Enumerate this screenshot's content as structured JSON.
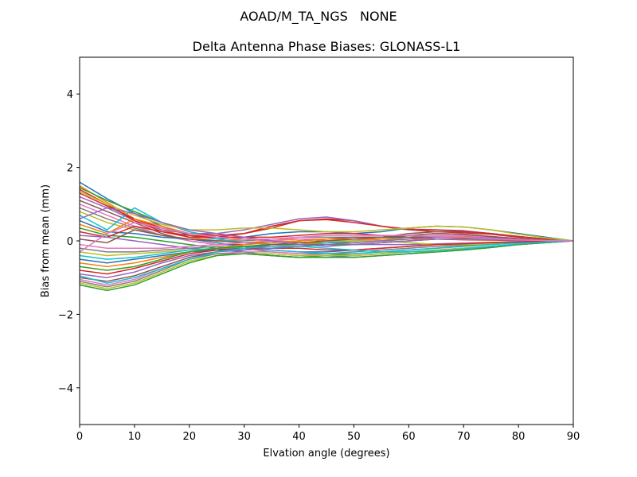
{
  "suptitle": "AOAD/M_TA_NGS   NONE",
  "chart_data": {
    "type": "line",
    "title": "Delta Antenna Phase Biases: GLONASS-L1",
    "xlabel": "Elvation angle (degrees)",
    "ylabel": "Bias from mean (mm)",
    "xlim": [
      0,
      90
    ],
    "ylim": [
      -5,
      5
    ],
    "xticks": [
      0,
      10,
      20,
      30,
      40,
      50,
      60,
      70,
      80,
      90
    ],
    "xtick_labels": [
      "0",
      "10",
      "20",
      "30",
      "40",
      "50",
      "60",
      "70",
      "80",
      "90"
    ],
    "yticks": [
      -4,
      -2,
      0,
      2,
      4
    ],
    "ytick_labels": [
      "−4",
      "−2",
      "0",
      "2",
      "4"
    ],
    "grid": false,
    "legend": "none",
    "x": [
      0,
      5,
      10,
      15,
      20,
      25,
      30,
      35,
      40,
      45,
      50,
      55,
      60,
      65,
      70,
      75,
      80,
      85,
      90
    ],
    "series": [
      {
        "color": "#1f77b4",
        "values": [
          1.6,
          1.15,
          0.75,
          0.4,
          0.15,
          0.05,
          0.1,
          0.2,
          0.25,
          0.25,
          0.2,
          0.25,
          0.35,
          0.4,
          0.38,
          0.3,
          0.2,
          0.1,
          0.0
        ]
      },
      {
        "color": "#ff7f0e",
        "values": [
          1.5,
          1.05,
          0.6,
          0.3,
          0.1,
          0.0,
          0.05,
          0.05,
          0.05,
          0.0,
          0.0,
          0.05,
          0.1,
          0.15,
          0.12,
          0.1,
          0.05,
          0.02,
          0.0
        ]
      },
      {
        "color": "#2ca02c",
        "values": [
          1.45,
          1.1,
          0.8,
          0.5,
          0.25,
          0.1,
          0.05,
          0.0,
          -0.05,
          -0.05,
          -0.05,
          0.0,
          0.05,
          0.1,
          0.1,
          0.08,
          0.05,
          0.02,
          0.0
        ]
      },
      {
        "color": "#d62728",
        "values": [
          1.3,
          0.95,
          0.6,
          0.35,
          0.2,
          0.15,
          0.2,
          0.35,
          0.55,
          0.6,
          0.55,
          0.4,
          0.3,
          0.25,
          0.22,
          0.18,
          0.1,
          0.05,
          0.0
        ]
      },
      {
        "color": "#9467bd",
        "values": [
          1.2,
          0.9,
          0.55,
          0.3,
          0.2,
          0.2,
          0.3,
          0.45,
          0.6,
          0.65,
          0.55,
          0.4,
          0.3,
          0.3,
          0.28,
          0.2,
          0.12,
          0.05,
          0.0
        ]
      },
      {
        "color": "#8c564b",
        "values": [
          1.1,
          0.8,
          0.5,
          0.2,
          0.0,
          -0.1,
          -0.1,
          -0.05,
          0.0,
          0.05,
          0.05,
          0.1,
          0.2,
          0.25,
          0.25,
          0.2,
          0.12,
          0.05,
          0.0
        ]
      },
      {
        "color": "#e377c2",
        "values": [
          1.0,
          0.7,
          0.4,
          0.15,
          0.0,
          -0.1,
          -0.15,
          -0.15,
          -0.1,
          -0.05,
          0.0,
          0.05,
          0.1,
          0.15,
          0.15,
          0.1,
          0.05,
          0.02,
          0.0
        ]
      },
      {
        "color": "#7f7f7f",
        "values": [
          0.9,
          0.6,
          0.35,
          0.15,
          0.05,
          0.0,
          0.0,
          0.05,
          0.1,
          0.1,
          0.1,
          0.1,
          0.15,
          0.2,
          0.18,
          0.12,
          0.06,
          0.02,
          0.0
        ]
      },
      {
        "color": "#bcbd22",
        "values": [
          0.8,
          0.5,
          0.3,
          0.15,
          0.05,
          0.0,
          -0.05,
          -0.1,
          -0.1,
          -0.1,
          -0.1,
          -0.05,
          0.0,
          0.05,
          0.05,
          0.05,
          0.03,
          0.01,
          0.0
        ]
      },
      {
        "color": "#17becf",
        "values": [
          0.7,
          0.3,
          0.9,
          0.5,
          0.25,
          0.05,
          -0.05,
          -0.1,
          -0.1,
          -0.05,
          0.0,
          0.05,
          0.1,
          0.1,
          0.08,
          0.05,
          0.02,
          0.01,
          0.0
        ]
      },
      {
        "color": "#1f77b4",
        "values": [
          0.55,
          0.25,
          0.2,
          0.1,
          0.05,
          -0.05,
          -0.15,
          -0.25,
          -0.3,
          -0.3,
          -0.25,
          -0.2,
          -0.15,
          -0.1,
          -0.08,
          -0.05,
          -0.03,
          -0.01,
          0.0
        ]
      },
      {
        "color": "#ff7f0e",
        "values": [
          0.45,
          0.2,
          0.6,
          0.4,
          0.2,
          0.1,
          0.05,
          0.0,
          -0.05,
          -0.1,
          -0.1,
          -0.05,
          0.0,
          0.05,
          0.05,
          0.03,
          0.02,
          0.01,
          0.0
        ]
      },
      {
        "color": "#2ca02c",
        "values": [
          0.35,
          0.15,
          0.1,
          0.0,
          -0.1,
          -0.2,
          -0.3,
          -0.4,
          -0.45,
          -0.4,
          -0.35,
          -0.3,
          -0.25,
          -0.2,
          -0.15,
          -0.1,
          -0.05,
          -0.02,
          0.0
        ]
      },
      {
        "color": "#d62728",
        "values": [
          0.25,
          0.1,
          0.4,
          0.25,
          0.15,
          0.1,
          0.1,
          0.1,
          0.15,
          0.2,
          0.2,
          0.15,
          0.1,
          0.05,
          0.03,
          0.02,
          0.01,
          0.0,
          0.0
        ]
      },
      {
        "color": "#9467bd",
        "values": [
          0.15,
          0.1,
          0.0,
          -0.1,
          -0.2,
          -0.25,
          -0.25,
          -0.2,
          -0.15,
          -0.1,
          -0.1,
          -0.1,
          -0.1,
          -0.08,
          -0.06,
          -0.04,
          -0.02,
          -0.01,
          0.0
        ]
      },
      {
        "color": "#8c564b",
        "values": [
          0.05,
          -0.05,
          0.3,
          0.15,
          0.05,
          0.0,
          -0.05,
          -0.05,
          0.0,
          0.05,
          0.1,
          0.1,
          0.1,
          0.1,
          0.08,
          0.05,
          0.03,
          0.01,
          0.0
        ]
      },
      {
        "color": "#e377c2",
        "values": [
          -0.1,
          -0.2,
          -0.2,
          -0.2,
          -0.15,
          -0.1,
          -0.05,
          0.0,
          0.05,
          0.05,
          0.05,
          0.0,
          -0.05,
          -0.1,
          -0.1,
          -0.08,
          -0.05,
          -0.02,
          0.0
        ]
      },
      {
        "color": "#7f7f7f",
        "values": [
          -0.2,
          -0.3,
          -0.3,
          -0.25,
          -0.2,
          -0.15,
          -0.2,
          -0.3,
          -0.35,
          -0.35,
          -0.3,
          -0.25,
          -0.2,
          -0.15,
          -0.12,
          -0.08,
          -0.04,
          -0.02,
          0.0
        ]
      },
      {
        "color": "#bcbd22",
        "values": [
          -0.3,
          -0.4,
          -0.35,
          -0.3,
          -0.25,
          -0.2,
          -0.15,
          -0.1,
          -0.05,
          0.0,
          0.0,
          0.0,
          -0.05,
          -0.1,
          -0.1,
          -0.08,
          -0.05,
          -0.02,
          0.0
        ]
      },
      {
        "color": "#17becf",
        "values": [
          -0.4,
          -0.5,
          -0.45,
          -0.35,
          -0.25,
          -0.2,
          -0.2,
          -0.25,
          -0.3,
          -0.35,
          -0.35,
          -0.3,
          -0.25,
          -0.2,
          -0.15,
          -0.1,
          -0.05,
          -0.02,
          0.0
        ]
      },
      {
        "color": "#1f77b4",
        "values": [
          -0.5,
          -0.6,
          -0.5,
          -0.4,
          -0.3,
          -0.25,
          -0.3,
          -0.4,
          -0.45,
          -0.45,
          -0.4,
          -0.35,
          -0.3,
          -0.25,
          -0.2,
          -0.15,
          -0.1,
          -0.05,
          0.0
        ]
      },
      {
        "color": "#ff7f0e",
        "values": [
          -0.6,
          -0.7,
          -0.6,
          -0.45,
          -0.3,
          -0.2,
          -0.1,
          -0.05,
          0.0,
          0.05,
          0.05,
          0.05,
          0.05,
          0.05,
          0.04,
          0.03,
          0.02,
          0.01,
          0.0
        ]
      },
      {
        "color": "#2ca02c",
        "values": [
          -0.7,
          -0.8,
          -0.7,
          -0.5,
          -0.3,
          -0.2,
          -0.15,
          -0.1,
          -0.1,
          -0.1,
          -0.1,
          -0.05,
          0.0,
          0.05,
          0.05,
          0.04,
          0.02,
          0.01,
          0.0
        ]
      },
      {
        "color": "#d62728",
        "values": [
          -0.8,
          -0.9,
          -0.75,
          -0.55,
          -0.35,
          -0.25,
          -0.2,
          -0.2,
          -0.2,
          -0.25,
          -0.25,
          -0.2,
          -0.15,
          -0.1,
          -0.08,
          -0.05,
          -0.03,
          -0.01,
          0.0
        ]
      },
      {
        "color": "#9467bd",
        "values": [
          -0.9,
          -1.0,
          -0.85,
          -0.6,
          -0.4,
          -0.3,
          -0.25,
          -0.2,
          -0.15,
          -0.1,
          -0.05,
          0.0,
          0.05,
          0.1,
          0.1,
          0.08,
          0.05,
          0.02,
          0.0
        ]
      },
      {
        "color": "#8c564b",
        "values": [
          -1.0,
          -1.1,
          -0.95,
          -0.7,
          -0.45,
          -0.3,
          -0.2,
          -0.1,
          -0.05,
          0.0,
          0.05,
          0.1,
          0.15,
          0.2,
          0.18,
          0.12,
          0.06,
          0.02,
          0.0
        ]
      },
      {
        "color": "#e377c2",
        "values": [
          -1.05,
          -1.2,
          -1.05,
          -0.75,
          -0.5,
          -0.35,
          -0.3,
          -0.3,
          -0.35,
          -0.4,
          -0.4,
          -0.35,
          -0.3,
          -0.25,
          -0.2,
          -0.15,
          -0.1,
          -0.05,
          0.0
        ]
      },
      {
        "color": "#7f7f7f",
        "values": [
          -1.1,
          -1.25,
          -1.1,
          -0.8,
          -0.5,
          -0.35,
          -0.35,
          -0.4,
          -0.45,
          -0.45,
          -0.45,
          -0.4,
          -0.35,
          -0.3,
          -0.25,
          -0.18,
          -0.1,
          -0.05,
          0.0
        ]
      },
      {
        "color": "#bcbd22",
        "values": [
          -1.15,
          -1.3,
          -1.15,
          -0.85,
          -0.55,
          -0.4,
          -0.35,
          -0.35,
          -0.4,
          -0.4,
          -0.4,
          -0.35,
          -0.3,
          -0.25,
          -0.2,
          -0.15,
          -0.1,
          -0.05,
          0.0
        ]
      },
      {
        "color": "#2ca02c",
        "values": [
          -1.2,
          -1.35,
          -1.2,
          -0.9,
          -0.6,
          -0.4,
          -0.35,
          -0.4,
          -0.45,
          -0.45,
          -0.45,
          -0.4,
          -0.35,
          -0.3,
          -0.25,
          -0.18,
          -0.1,
          -0.05,
          0.0
        ]
      },
      {
        "color": "#17becf",
        "values": [
          -0.95,
          -1.15,
          -1.0,
          -0.75,
          -0.5,
          -0.3,
          -0.2,
          -0.15,
          -0.15,
          -0.2,
          -0.25,
          -0.3,
          -0.3,
          -0.28,
          -0.22,
          -0.15,
          -0.08,
          -0.03,
          0.0
        ]
      },
      {
        "color": "#d62728",
        "values": [
          1.4,
          1.0,
          0.55,
          0.25,
          0.1,
          0.1,
          0.2,
          0.4,
          0.55,
          0.58,
          0.5,
          0.4,
          0.32,
          0.3,
          0.26,
          0.2,
          0.12,
          0.05,
          0.0
        ]
      },
      {
        "color": "#bcbd22",
        "values": [
          1.35,
          1.0,
          0.7,
          0.45,
          0.3,
          0.3,
          0.35,
          0.35,
          0.3,
          0.25,
          0.25,
          0.3,
          0.35,
          0.4,
          0.38,
          0.3,
          0.18,
          0.08,
          0.0
        ]
      },
      {
        "color": "#9467bd",
        "values": [
          0.6,
          0.9,
          0.75,
          0.5,
          0.3,
          0.2,
          0.1,
          0.0,
          -0.1,
          -0.15,
          -0.1,
          -0.05,
          0.0,
          0.05,
          0.05,
          0.04,
          0.02,
          0.01,
          0.0
        ]
      },
      {
        "color": "#e377c2",
        "values": [
          -0.3,
          0.2,
          0.5,
          0.35,
          0.2,
          0.1,
          0.05,
          0.05,
          0.1,
          0.15,
          0.15,
          0.15,
          0.15,
          0.12,
          0.1,
          0.06,
          0.03,
          0.01,
          0.0
        ]
      }
    ]
  }
}
